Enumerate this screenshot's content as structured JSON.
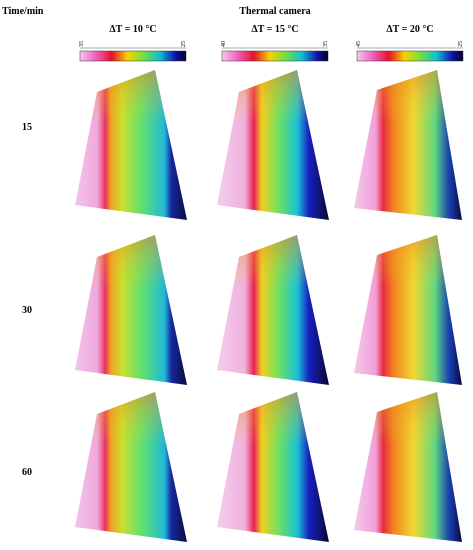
{
  "header": {
    "row_label": "Time/min",
    "title": "Thermal camera"
  },
  "columns": [
    {
      "label": "ΔT = 10 °C",
      "colorbar": {
        "min": 35,
        "max": 25
      }
    },
    {
      "label": "ΔT = 15 °C",
      "colorbar": {
        "min": 40,
        "max": 35
      }
    },
    {
      "label": "ΔT = 20 °C",
      "colorbar": {
        "min": 45,
        "max": 25
      }
    }
  ],
  "rows": [
    15,
    30,
    60
  ]
}
